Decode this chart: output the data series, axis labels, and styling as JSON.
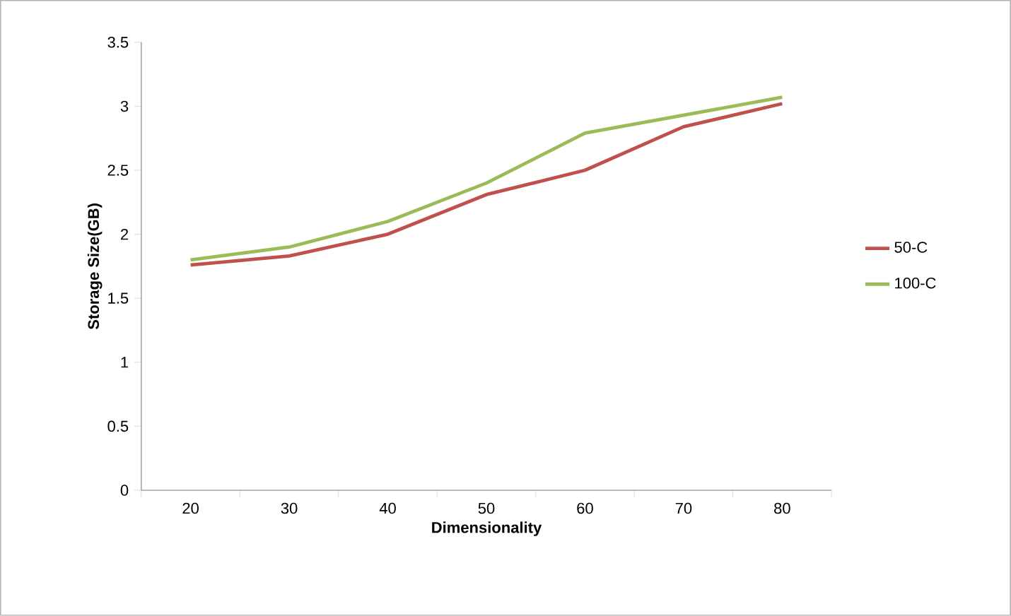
{
  "chart_data": {
    "type": "line",
    "xlabel": "Dimensionality",
    "ylabel": "Storage Size(GB)",
    "categories": [
      "20",
      "30",
      "40",
      "50",
      "60",
      "70",
      "80"
    ],
    "series": [
      {
        "name": "50-C",
        "color": "#c0504d",
        "values": [
          1.76,
          1.83,
          2.0,
          2.31,
          2.5,
          2.84,
          3.02
        ]
      },
      {
        "name": "100-C",
        "color": "#9bbb59",
        "values": [
          1.8,
          1.9,
          2.1,
          2.4,
          2.79,
          2.93,
          3.07
        ]
      }
    ],
    "ylim": [
      0,
      3.5
    ],
    "yticks": [
      0,
      0.5,
      1,
      1.5,
      2,
      2.5,
      3,
      3.5
    ],
    "legend": "right"
  }
}
